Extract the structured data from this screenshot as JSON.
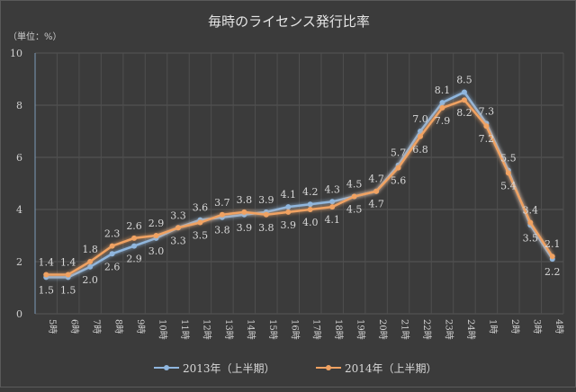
{
  "chart_data": {
    "type": "line",
    "title": "毎時のライセンス発行比率",
    "unit_label": "（単位：%）",
    "categories": [
      "5時",
      "6時",
      "7時",
      "8時",
      "9時",
      "10時",
      "11時",
      "12時",
      "13時",
      "14時",
      "15時",
      "16時",
      "17時",
      "18時",
      "19時",
      "20時",
      "21時",
      "22時",
      "23時",
      "24時",
      "1時",
      "2時",
      "3時",
      "4時"
    ],
    "series": [
      {
        "name": "2013年（上半期）",
        "color": "#8fb6de",
        "values": [
          1.4,
          1.4,
          1.8,
          2.3,
          2.6,
          2.9,
          3.3,
          3.6,
          3.7,
          3.8,
          3.9,
          4.1,
          4.2,
          4.3,
          4.5,
          4.7,
          5.7,
          7.0,
          8.1,
          8.5,
          7.3,
          5.5,
          3.4,
          2.1
        ]
      },
      {
        "name": "2014年（上半期）",
        "color": "#f0a262",
        "values": [
          1.5,
          1.5,
          2.0,
          2.6,
          2.9,
          3.0,
          3.3,
          3.5,
          3.8,
          3.9,
          3.8,
          3.9,
          4.0,
          4.1,
          4.5,
          4.7,
          5.6,
          6.8,
          7.9,
          8.2,
          7.2,
          5.4,
          3.5,
          2.2
        ]
      }
    ],
    "ylim": [
      0,
      10
    ],
    "yticks": [
      0,
      2,
      4,
      6,
      8,
      10
    ],
    "grid": true,
    "legend": "bottom",
    "background": "#3b3b3b"
  }
}
